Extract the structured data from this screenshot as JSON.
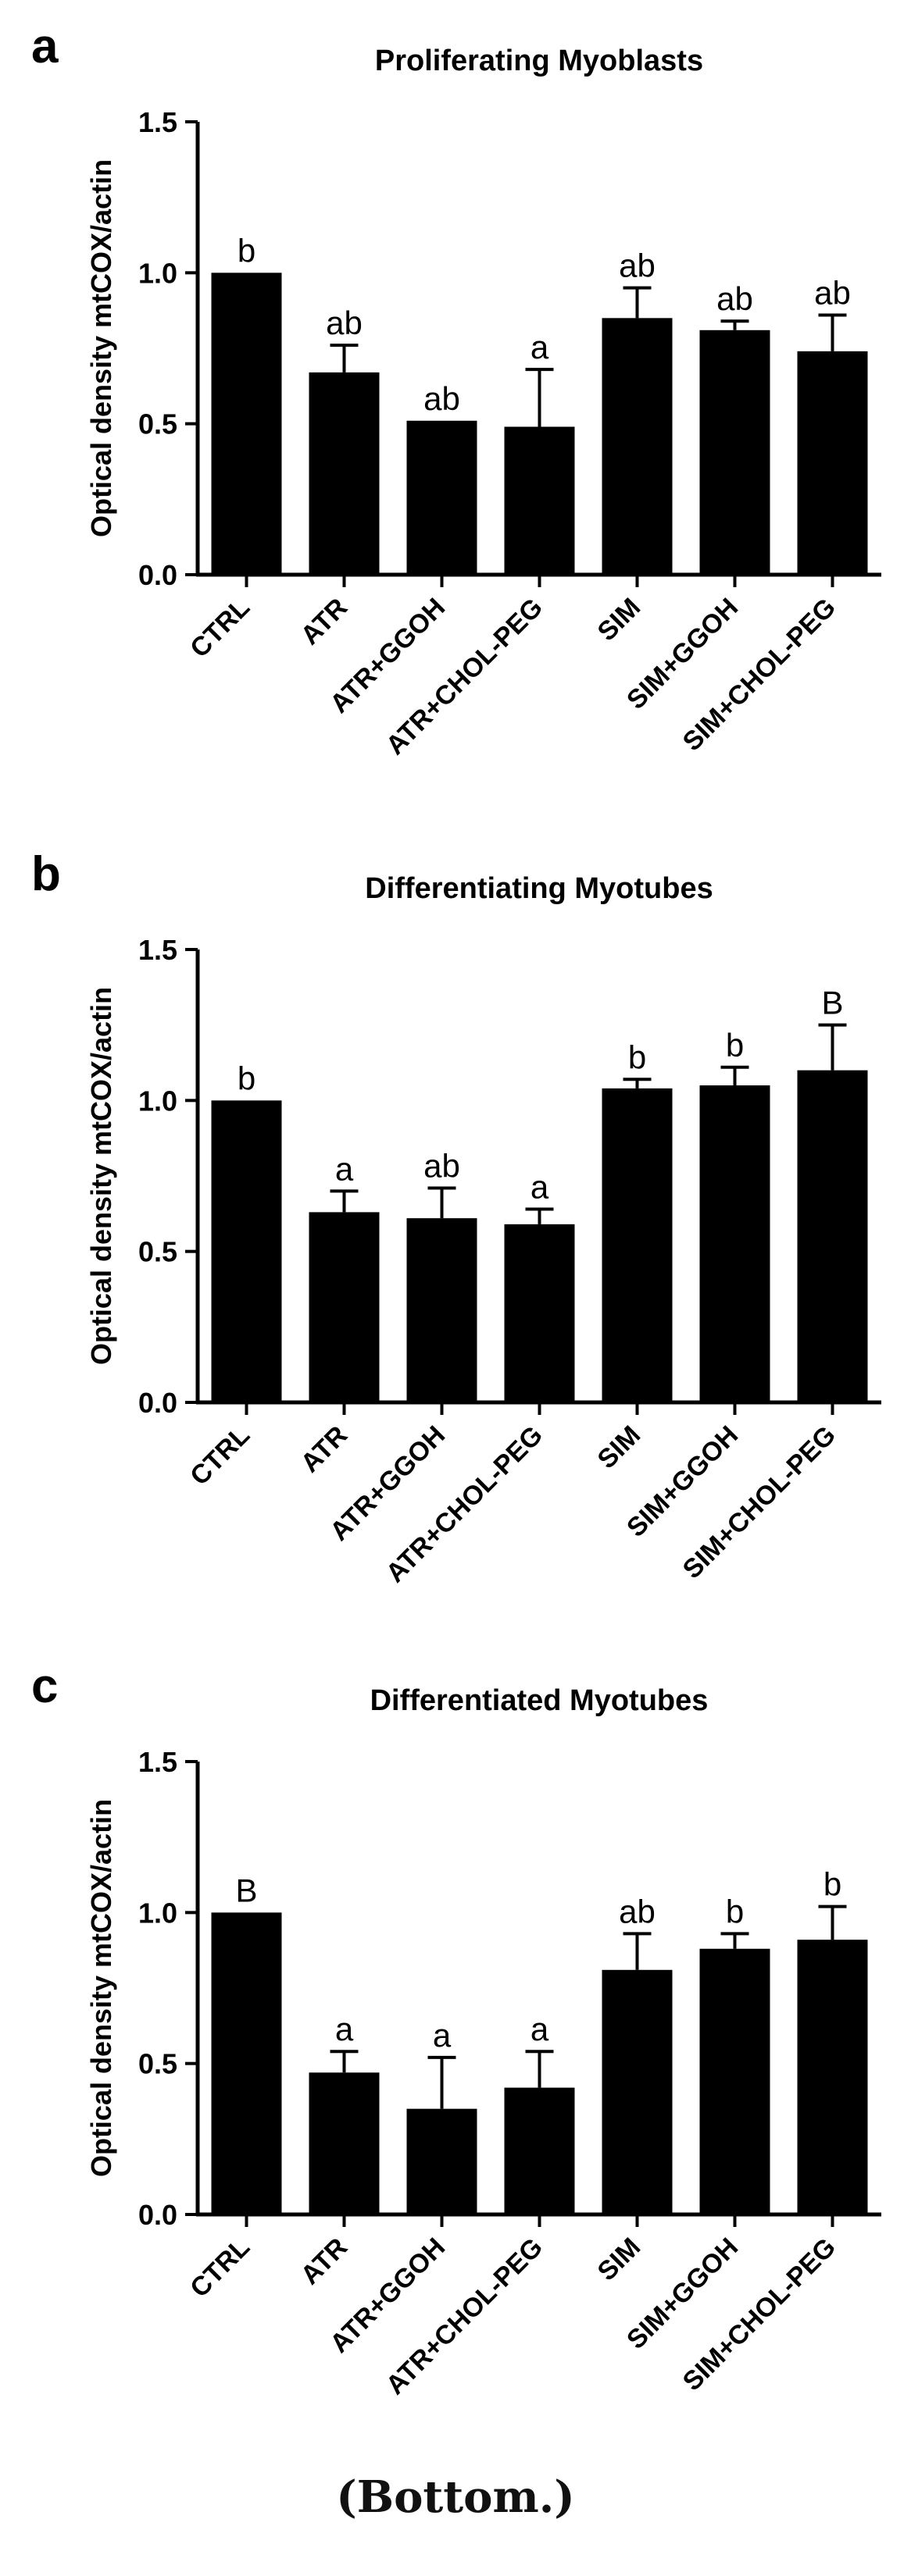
{
  "caption": "(Bottom.)",
  "chart_data": [
    {
      "panel_label": "a",
      "type": "bar",
      "title": "Proliferating Myoblasts",
      "ylabel": "Optical density mtCOX/actin",
      "xlabel": "",
      "ylim": [
        0,
        1.5
      ],
      "yticks": [
        "0.0",
        "0.5",
        "1.0",
        "1.5"
      ],
      "categories": [
        "CTRL",
        "ATR",
        "ATR+GGOH",
        "ATR+CHOL-PEG",
        "SIM",
        "SIM+GGOH",
        "SIM+CHOL-PEG"
      ],
      "values": [
        1.0,
        0.67,
        0.51,
        0.49,
        0.85,
        0.81,
        0.74
      ],
      "errors": [
        0.0,
        0.09,
        0.0,
        0.19,
        0.1,
        0.03,
        0.12
      ],
      "letters": [
        "b",
        "ab",
        "ab",
        "a",
        "ab",
        "ab",
        "ab"
      ],
      "bar_color": "#000000",
      "legend": "none",
      "grid": false
    },
    {
      "panel_label": "b",
      "type": "bar",
      "title": "Differentiating Myotubes",
      "ylabel": "Optical density mtCOX/actin",
      "xlabel": "",
      "ylim": [
        0,
        1.5
      ],
      "yticks": [
        "0.0",
        "0.5",
        "1.0",
        "1.5"
      ],
      "categories": [
        "CTRL",
        "ATR",
        "ATR+GGOH",
        "ATR+CHOL-PEG",
        "SIM",
        "SIM+GGOH",
        "SIM+CHOL-PEG"
      ],
      "values": [
        1.0,
        0.63,
        0.61,
        0.59,
        1.04,
        1.05,
        1.1
      ],
      "errors": [
        0.0,
        0.07,
        0.1,
        0.05,
        0.03,
        0.06,
        0.15
      ],
      "letters": [
        "b",
        "a",
        "ab",
        "a",
        "b",
        "b",
        "B"
      ],
      "bar_color": "#000000",
      "legend": "none",
      "grid": false
    },
    {
      "panel_label": "c",
      "type": "bar",
      "title": "Differentiated Myotubes",
      "ylabel": "Optical density mtCOX/actin",
      "xlabel": "",
      "ylim": [
        0,
        1.5
      ],
      "yticks": [
        "0.0",
        "0.5",
        "1.0",
        "1.5"
      ],
      "categories": [
        "CTRL",
        "ATR",
        "ATR+GGOH",
        "ATR+CHOL-PEG",
        "SIM",
        "SIM+GGOH",
        "SIM+CHOL-PEG"
      ],
      "values": [
        1.0,
        0.47,
        0.35,
        0.42,
        0.81,
        0.88,
        0.91
      ],
      "errors": [
        0.0,
        0.07,
        0.17,
        0.12,
        0.12,
        0.05,
        0.11
      ],
      "letters": [
        "B",
        "a",
        "a",
        "a",
        "ab",
        "b",
        "b"
      ],
      "bar_color": "#000000",
      "legend": "none",
      "grid": false
    }
  ]
}
